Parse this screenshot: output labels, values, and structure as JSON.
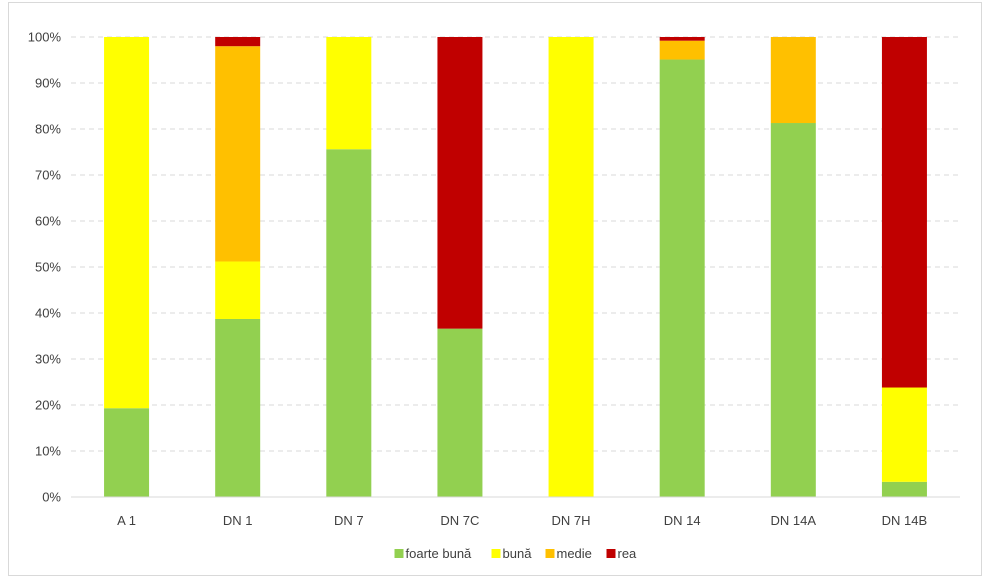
{
  "chart_data": {
    "type": "bar",
    "stacked": true,
    "normalized": true,
    "categories": [
      "A 1",
      "DN 1",
      "DN 7",
      "DN 7C",
      "DN 7H",
      "DN 14",
      "DN 14A",
      "DN 14B"
    ],
    "series": [
      {
        "name": "foarte bună",
        "color": "#92d050",
        "values": [
          19.3,
          38.7,
          75.6,
          36.6,
          0,
          95.1,
          81.3,
          3.3
        ]
      },
      {
        "name": "bună",
        "color": "#ffff00",
        "values": [
          80.7,
          12.5,
          24.4,
          0,
          100,
          0,
          0,
          20.5
        ]
      },
      {
        "name": "medie",
        "color": "#ffc000",
        "values": [
          0,
          46.8,
          0,
          0,
          0,
          4.1,
          18.7,
          0
        ]
      },
      {
        "name": "rea",
        "color": "#c00000",
        "values": [
          0,
          2.0,
          0,
          63.4,
          0,
          0.8,
          0,
          76.2
        ]
      }
    ],
    "ylim": [
      0,
      100
    ],
    "yticks": [
      "0%",
      "10%",
      "20%",
      "30%",
      "40%",
      "50%",
      "60%",
      "70%",
      "80%",
      "90%",
      "100%"
    ],
    "grid": true,
    "legend_position": "bottom"
  }
}
